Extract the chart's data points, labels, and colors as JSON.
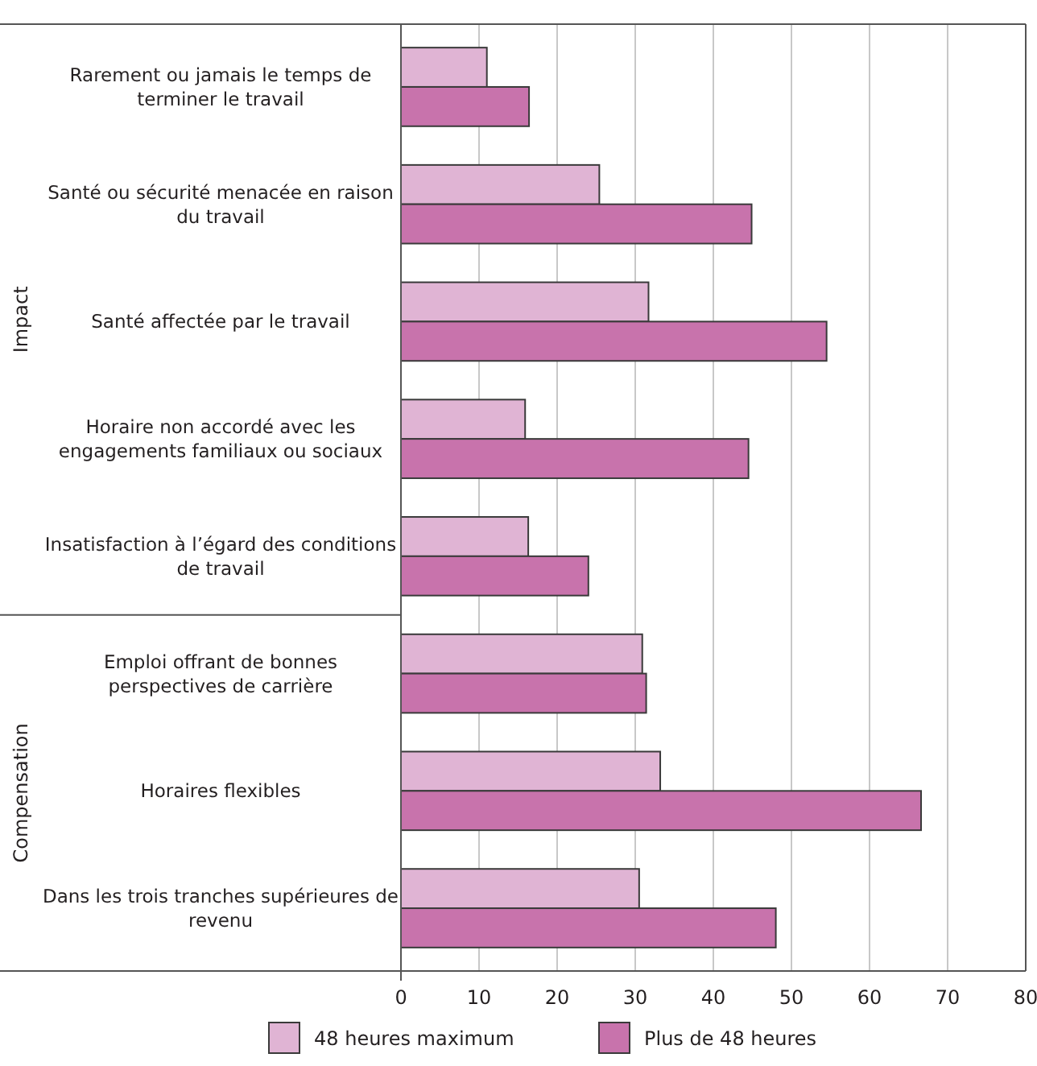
{
  "chart_data": {
    "type": "bar",
    "orientation": "horizontal",
    "categories": [
      "Rarement ou jamais le temps de terminer le travail",
      "Santé ou sécurité menacée en raison du travail",
      "Santé affectée par le travail",
      "Horaire non accordé avec les engagements familiaux ou sociaux",
      "Insatisfaction à l’égard des conditions de travail",
      "Emploi offrant de bonnes perspectives de carrière",
      "Horaires flexibles",
      "Dans les trois tranches supérieures de revenu"
    ],
    "series": [
      {
        "name": "48 heures maximum",
        "color": "#e0b4d4",
        "values": [
          11.0,
          25.4,
          31.7,
          15.9,
          16.3,
          30.9,
          33.2,
          30.5
        ]
      },
      {
        "name": "Plus de 48 heures",
        "color": "#c873ac",
        "values": [
          16.4,
          44.9,
          54.5,
          44.5,
          24.0,
          31.4,
          66.6,
          48.0
        ]
      }
    ],
    "xlim": [
      0,
      80
    ],
    "xticks": [
      0,
      10,
      20,
      30,
      40,
      50,
      60,
      70,
      80
    ],
    "grid": "x",
    "legend": "bottom",
    "annotations": [
      "Impact",
      "Compensation"
    ]
  }
}
